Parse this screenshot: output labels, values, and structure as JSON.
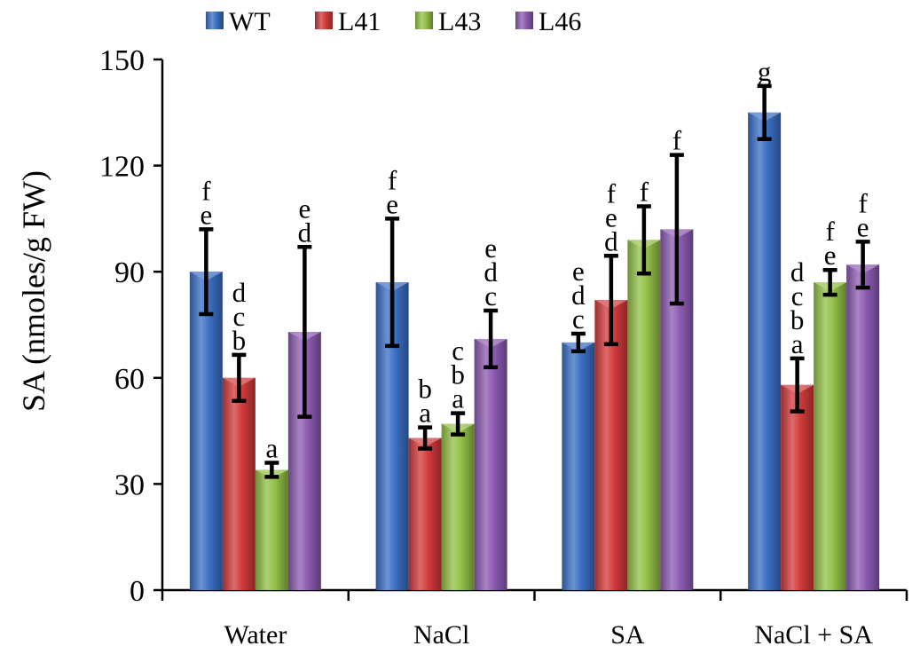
{
  "chart_data": {
    "type": "bar",
    "title": "",
    "xlabel": "",
    "ylabel": "SA (nmoles/g  FW)",
    "ylim": [
      0,
      150
    ],
    "yticks": [
      0,
      30,
      60,
      90,
      120,
      150
    ],
    "grid": false,
    "legend_position": "top",
    "categories": [
      "Water",
      "NaCl",
      "SA",
      "NaCl + SA"
    ],
    "series": [
      {
        "name": "WT",
        "color": "#3a6fc4",
        "values": [
          90,
          87,
          70,
          135
        ],
        "errors": [
          12,
          18,
          2.5,
          7.5
        ],
        "sig_letters": [
          "fe",
          "fe",
          "edc",
          "g"
        ]
      },
      {
        "name": "L41",
        "color": "#d23a3a",
        "values": [
          60,
          43,
          82,
          58
        ],
        "errors": [
          6.5,
          3,
          12.5,
          7.5
        ],
        "sig_letters": [
          "dcb",
          "ba",
          "fed",
          "dcba"
        ]
      },
      {
        "name": "L43",
        "color": "#93c047",
        "values": [
          34,
          47,
          99,
          87
        ],
        "errors": [
          2,
          3,
          9.5,
          3.5
        ],
        "sig_letters": [
          "a",
          "cba",
          "f",
          "fe"
        ]
      },
      {
        "name": "L46",
        "color": "#8c5bb2",
        "values": [
          73,
          71,
          102,
          92
        ],
        "errors": [
          24,
          8,
          21,
          6.5
        ],
        "sig_letters": [
          "ed",
          "edc",
          "f",
          "fe"
        ]
      }
    ]
  }
}
